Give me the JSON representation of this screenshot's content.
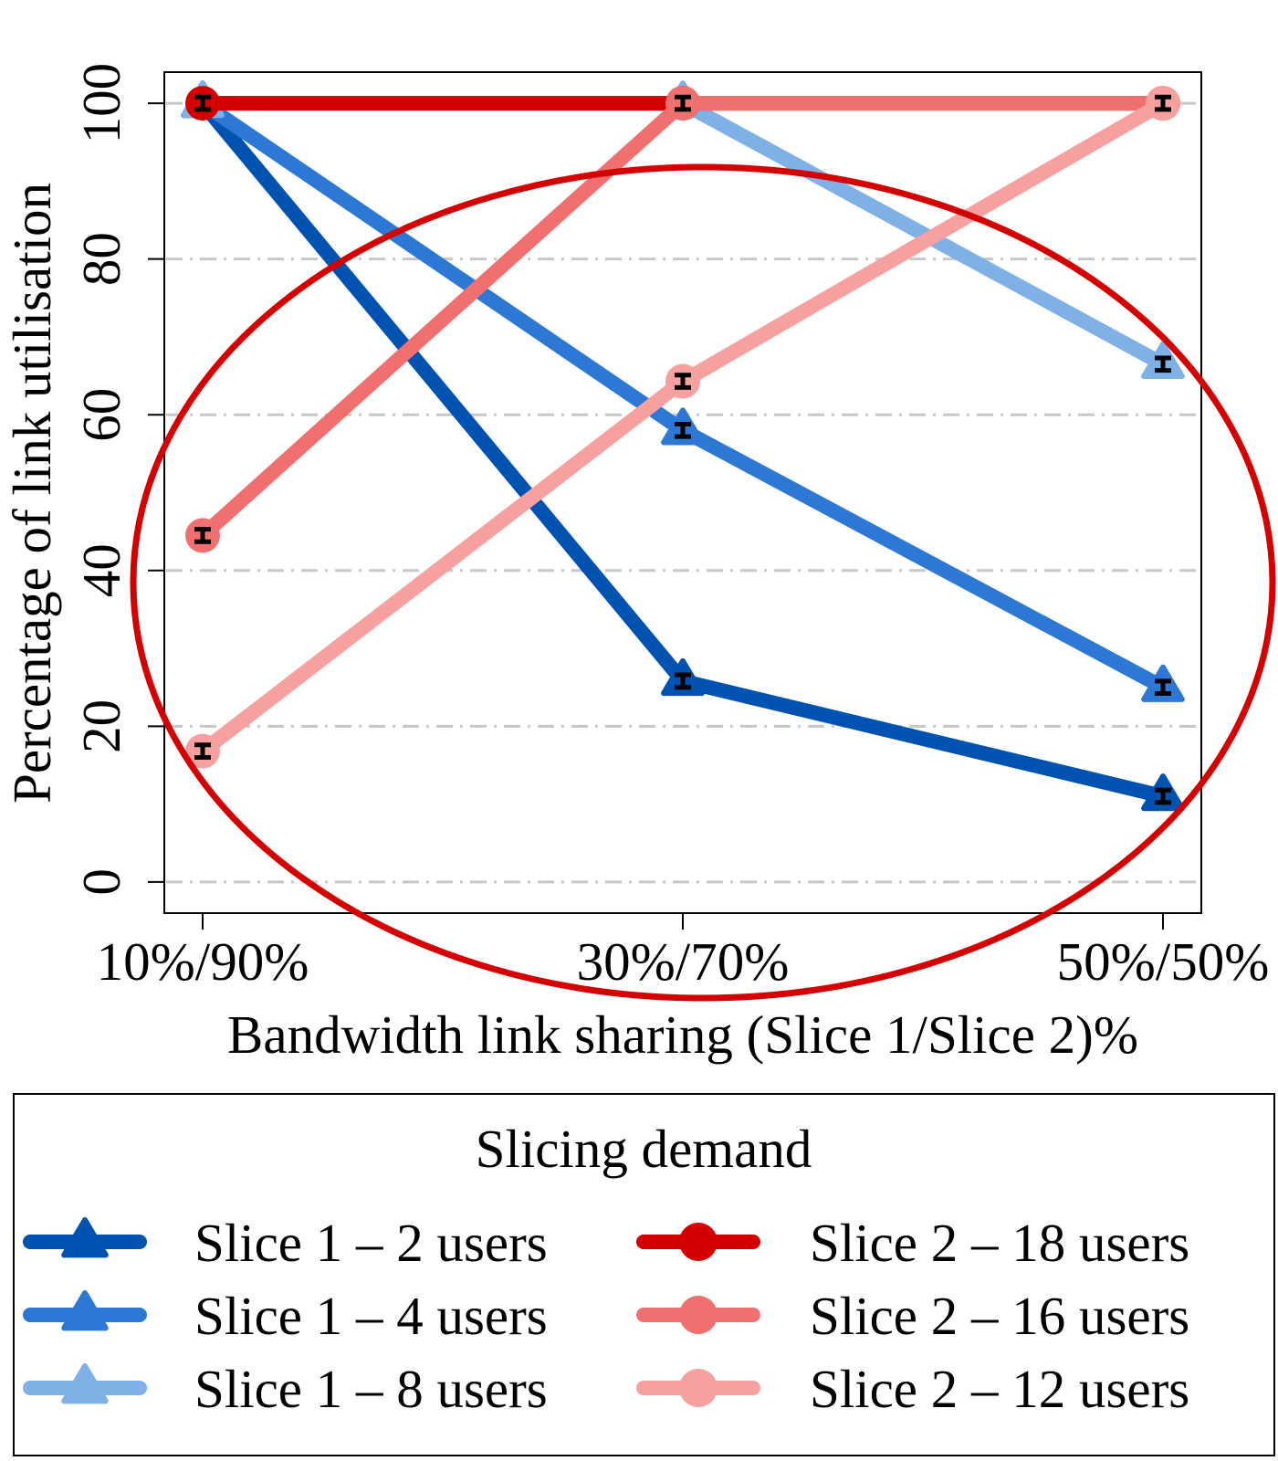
{
  "chart_data": {
    "type": "line",
    "title": "",
    "xlabel": "Bandwidth link sharing (Slice 1/Slice 2)%",
    "ylabel": "Percentage of link utilisation",
    "categories": [
      "10%/90%",
      "30%/70%",
      "50%/50%"
    ],
    "ylim": [
      -4,
      104
    ],
    "yticks": [
      0,
      20,
      40,
      60,
      80,
      100
    ],
    "grid": "horizontal dash-dot",
    "legend_title": "Slicing demand",
    "legend_placement": "bottom",
    "series": [
      {
        "name": "Slice 1 – 2 users",
        "values": [
          100,
          25.8,
          11.0
        ],
        "color": "#0052b0",
        "marker": "triangle",
        "error": 0.8
      },
      {
        "name": "Slice 1 – 4 users",
        "values": [
          100,
          58.0,
          25.0
        ],
        "color": "#2c78d4",
        "marker": "triangle",
        "error": 0.8
      },
      {
        "name": "Slice 1 – 8 users",
        "values": [
          100,
          100,
          66.5
        ],
        "color": "#7fb0e6",
        "marker": "triangle",
        "error": 0.8
      },
      {
        "name": "Slice 2 – 18 users",
        "values": [
          100,
          100,
          100
        ],
        "color": "#d40000",
        "marker": "circle",
        "error": 0.8
      },
      {
        "name": "Slice 2 – 16 users",
        "values": [
          44.5,
          100,
          100
        ],
        "color": "#f07070",
        "marker": "circle",
        "error": 0.8
      },
      {
        "name": "Slice 2 – 12 users",
        "values": [
          16.8,
          64.3,
          100
        ],
        "color": "#f7a0a0",
        "marker": "circle",
        "error": 0.8
      }
    ],
    "annotation": {
      "shape": "ellipse",
      "color": "#d40000"
    }
  }
}
